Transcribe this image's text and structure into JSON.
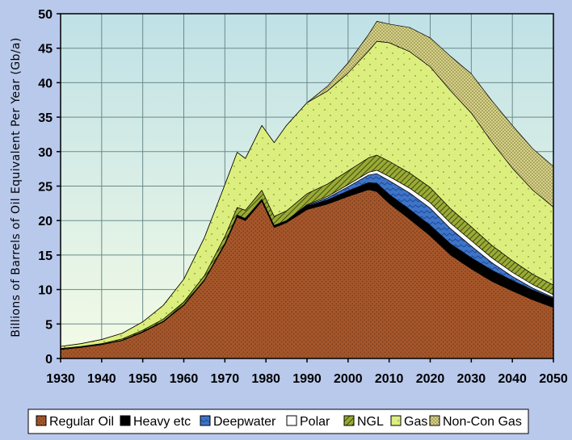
{
  "chart_data": {
    "type": "area",
    "stacked": true,
    "title": "",
    "xlabel": "",
    "ylabel": "Billions of Barrels of Oil Equivalent Per Year (Gb/a)",
    "xlim": [
      1930,
      2050
    ],
    "ylim": [
      0,
      50
    ],
    "x_ticks": [
      1930,
      1940,
      1950,
      1960,
      1970,
      1980,
      1990,
      2000,
      2010,
      2020,
      2030,
      2040,
      2050
    ],
    "y_ticks": [
      0,
      5,
      10,
      15,
      20,
      25,
      30,
      35,
      40,
      45,
      50
    ],
    "grid": true,
    "legend_position": "bottom",
    "x": [
      1930,
      1935,
      1940,
      1945,
      1950,
      1955,
      1960,
      1965,
      1970,
      1973,
      1975,
      1979,
      1982,
      1985,
      1990,
      1995,
      2000,
      2005,
      2007,
      2010,
      2015,
      2020,
      2025,
      2030,
      2035,
      2040,
      2045,
      2050
    ],
    "series": [
      {
        "name": "Regular Oil",
        "color": "#a5562a",
        "values": [
          1.3,
          1.6,
          2.0,
          2.6,
          3.8,
          5.3,
          7.7,
          11.3,
          16.5,
          20.5,
          20.0,
          22.8,
          19.0,
          19.7,
          21.6,
          22.4,
          23.5,
          24.5,
          24.2,
          22.5,
          20.2,
          17.8,
          15.0,
          13.0,
          11.2,
          9.8,
          8.5,
          7.4
        ]
      },
      {
        "name": "Heavy etc",
        "color": "#000000",
        "values": [
          0.05,
          0.05,
          0.05,
          0.05,
          0.1,
          0.1,
          0.1,
          0.1,
          0.2,
          0.3,
          0.3,
          0.3,
          0.3,
          0.3,
          0.5,
          0.6,
          0.8,
          1.0,
          1.2,
          1.3,
          1.4,
          1.5,
          1.6,
          1.6,
          1.6,
          1.5,
          1.4,
          1.3
        ]
      },
      {
        "name": "Deepwater",
        "color": "#3d74c9",
        "values": [
          0,
          0,
          0,
          0,
          0,
          0,
          0,
          0,
          0,
          0,
          0,
          0,
          0,
          0,
          0.1,
          0.3,
          0.6,
          1.1,
          1.4,
          2.0,
          2.4,
          2.5,
          2.2,
          1.7,
          1.1,
          0.6,
          0.3,
          0.15
        ]
      },
      {
        "name": "Polar",
        "color": "#ffffff",
        "values": [
          0,
          0,
          0,
          0,
          0,
          0,
          0,
          0,
          0,
          0,
          0,
          0,
          0,
          0,
          0.1,
          0.2,
          0.3,
          0.4,
          0.5,
          0.6,
          0.7,
          0.8,
          0.8,
          0.8,
          0.7,
          0.6,
          0.5,
          0.4
        ]
      },
      {
        "name": "NGL",
        "color": "#8a9a2c",
        "values": [
          0.1,
          0.1,
          0.1,
          0.2,
          0.2,
          0.3,
          0.4,
          0.6,
          1.0,
          1.1,
          1.2,
          1.3,
          1.3,
          1.4,
          1.6,
          1.8,
          2.0,
          2.1,
          2.2,
          2.2,
          2.2,
          2.2,
          2.1,
          2.0,
          1.8,
          1.7,
          1.5,
          1.4
        ]
      },
      {
        "name": "Gas",
        "color": "#dcef7e",
        "values": [
          0.3,
          0.4,
          0.6,
          0.8,
          1.2,
          2.0,
          3.3,
          5.5,
          7.5,
          8.0,
          7.5,
          9.4,
          10.7,
          12.4,
          13.2,
          13.5,
          14.2,
          15.5,
          16.5,
          17.2,
          17.6,
          17.5,
          17.1,
          16.5,
          15.0,
          13.4,
          12.2,
          11.3
        ]
      },
      {
        "name": "Non-Con Gas",
        "color": "#c8c46a",
        "values": [
          0,
          0,
          0,
          0,
          0,
          0,
          0,
          0,
          0,
          0,
          0,
          0,
          0,
          0,
          0,
          0.7,
          1.5,
          2.4,
          2.9,
          2.7,
          3.5,
          4.2,
          5.0,
          5.7,
          6.0,
          6.2,
          6.0,
          5.9
        ]
      }
    ]
  }
}
